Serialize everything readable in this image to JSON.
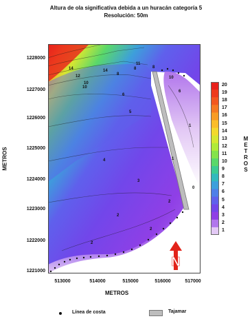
{
  "figure": {
    "title_line1": "Altura de ola significativa debida a un huracán categoría 5",
    "title_line2": "Resolución: 50m"
  },
  "axes": {
    "xlabel": "METROS",
    "ylabel": "METROS",
    "x_ticks": [
      "513000",
      "514000",
      "515000",
      "516000",
      "517000"
    ],
    "y_ticks": [
      "1228000",
      "1227000",
      "1226000",
      "1225000",
      "1224000",
      "1223000",
      "1222000",
      "1221000"
    ]
  },
  "colorbar": {
    "units": "METROS",
    "levels": [
      "20",
      "19",
      "18",
      "17",
      "16",
      "15",
      "14",
      "13",
      "12",
      "11",
      "10",
      "9",
      "8",
      "7",
      "6",
      "5",
      "4",
      "3",
      "2",
      "1"
    ],
    "colors": [
      "#e8211b",
      "#ee3b1c",
      "#f2581f",
      "#f57a22",
      "#f89c25",
      "#fbbd29",
      "#f3d92d",
      "#d6e731",
      "#b0ea38",
      "#84e34a",
      "#5ad86a",
      "#3ccb93",
      "#32b9bd",
      "#3d9fdb",
      "#4e7fe8",
      "#5f60ec",
      "#7246ea",
      "#8f3fe6",
      "#b176ec",
      "#e3c9f5"
    ]
  },
  "map": {
    "contour_labels": [
      "14",
      "12",
      "10",
      "8",
      "8",
      "14",
      "10",
      "11",
      "10",
      "8",
      "6",
      "6",
      "5",
      "4",
      "3",
      "2",
      "2",
      "1",
      "1",
      "0",
      "2",
      "2"
    ]
  },
  "legend": {
    "coast_label": "Línea de costa",
    "jetty_label": "Tajamar"
  },
  "north_arrow": {
    "label": "N",
    "color": "#e2231a"
  }
}
